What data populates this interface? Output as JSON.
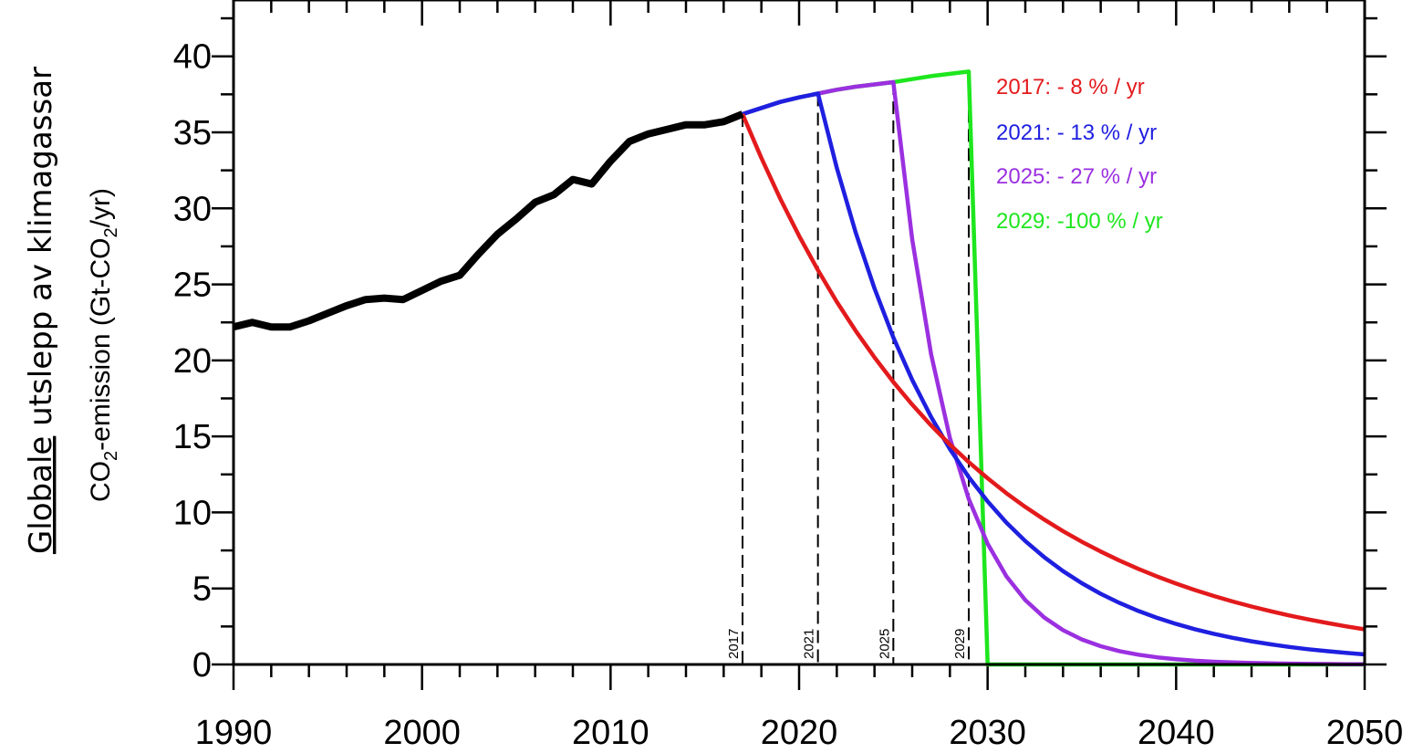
{
  "chart_data": {
    "type": "line",
    "ylabel_outer_underlined": "Globale",
    "ylabel_outer_rest": " utslepp av klimagassar",
    "ylabel_inner": {
      "prefix": "CO",
      "sub1": "2",
      "middle": "-emission (Gt-CO",
      "sub2": "2",
      "suffix": "/yr)"
    },
    "xlim": [
      1990,
      2050
    ],
    "ylim": [
      0,
      40
    ],
    "x_ticks": [
      1990,
      2000,
      2010,
      2020,
      2030,
      2040,
      2050
    ],
    "y_ticks": [
      0,
      5,
      10,
      15,
      20,
      25,
      30,
      35,
      40
    ],
    "historical": {
      "color": "#000000",
      "x": [
        1990,
        1991,
        1992,
        1993,
        1994,
        1995,
        1996,
        1997,
        1998,
        1999,
        2000,
        2001,
        2002,
        2003,
        2004,
        2005,
        2006,
        2007,
        2008,
        2009,
        2010,
        2011,
        2012,
        2013,
        2014,
        2015,
        2016,
        2017
      ],
      "y": [
        22.2,
        22.5,
        22.2,
        22.2,
        22.6,
        23.1,
        23.6,
        24.0,
        24.1,
        24.0,
        24.6,
        25.2,
        25.6,
        27.0,
        28.3,
        29.3,
        30.4,
        30.9,
        31.9,
        31.6,
        33.1,
        34.4,
        34.9,
        35.2,
        35.5,
        35.5,
        35.7,
        36.2
      ]
    },
    "pre_peak": {
      "x": [
        2017,
        2018,
        2019,
        2020,
        2021,
        2022,
        2023,
        2024,
        2025,
        2026,
        2027,
        2028,
        2029
      ],
      "y": [
        36.2,
        36.6,
        37.0,
        37.3,
        37.55,
        37.8,
        38.0,
        38.15,
        38.3,
        38.5,
        38.7,
        38.85,
        39.0
      ]
    },
    "series": [
      {
        "name": "2017: - 8 % / yr",
        "start": 2017,
        "rate": 0.08,
        "color": "#e31a1c"
      },
      {
        "name": "2021: - 13 % / yr",
        "start": 2021,
        "rate": 0.13,
        "color": "#1f1fe0"
      },
      {
        "name": "2025: - 27 % / yr",
        "start": 2025,
        "rate": 0.27,
        "color": "#9b30e0"
      },
      {
        "name": "2029: -100 % / yr",
        "start": 2029,
        "rate": 1.0,
        "color": "#1ee61e"
      }
    ],
    "vlines": [
      {
        "x": 2017,
        "label": "2017"
      },
      {
        "x": 2021,
        "label": "2021"
      },
      {
        "x": 2025,
        "label": "2025"
      },
      {
        "x": 2029,
        "label": "2029"
      }
    ]
  }
}
